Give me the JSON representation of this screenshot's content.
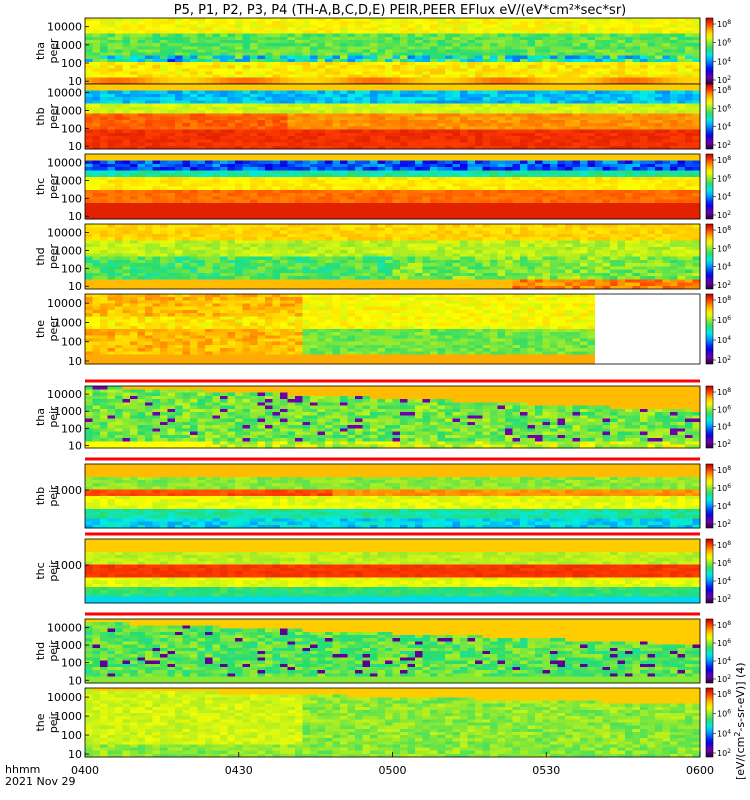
{
  "chart_data": {
    "type": "heatmap",
    "title": "P5, P1, P2, P3, P4 (TH-A,B,C,D,E) PEIR,PEER EFlux eV/(eV*cm²*sec*sr)",
    "x_ticks": [
      "0400",
      "0430",
      "0500",
      "0530",
      "0600"
    ],
    "x_range": [
      "0400",
      "0600"
    ],
    "x_label_top": "hhmm",
    "x_label_bottom": "2021 Nov 29",
    "colorbar": {
      "label": "[eV/(cm²-s-sr-eV)] (4)",
      "label_parts": [
        "[eV/(cm",
        "2",
        "-s-sr-eV)] (4)"
      ],
      "scale": "log",
      "tick_exponents": [
        2,
        4,
        6,
        8
      ],
      "tick_base": "10"
    },
    "y_scale": "log",
    "panels": [
      {
        "probe": "tha",
        "species": "peer",
        "y_ticks": [
          "10",
          "100",
          "1000",
          "10000"
        ],
        "y_range": [
          7,
          30000
        ],
        "colorbar_ticks": [
          2,
          4,
          6,
          8
        ],
        "pattern": "tha_peer",
        "flag_bar": false
      },
      {
        "probe": "thb",
        "species": "peer",
        "y_ticks": [
          "10",
          "100",
          "1000",
          "10000"
        ],
        "y_range": [
          7,
          30000
        ],
        "colorbar_ticks": [
          2,
          4,
          6,
          8
        ],
        "pattern": "thb_peer",
        "flag_bar": false
      },
      {
        "probe": "thc",
        "species": "peer",
        "y_ticks": [
          "10",
          "100",
          "1000",
          "10000"
        ],
        "y_range": [
          7,
          30000
        ],
        "colorbar_ticks": [
          2,
          4,
          6,
          8
        ],
        "pattern": "thc_peer",
        "flag_bar": false
      },
      {
        "probe": "thd",
        "species": "peer",
        "y_ticks": [
          "10",
          "100",
          "1000",
          "10000"
        ],
        "y_range": [
          7,
          30000
        ],
        "colorbar_ticks": [
          2,
          4,
          6,
          8
        ],
        "pattern": "thd_peer",
        "flag_bar": false
      },
      {
        "probe": "the",
        "species": "peer",
        "y_ticks": [
          "10",
          "100",
          "1000",
          "10000"
        ],
        "y_range": [
          7,
          30000
        ],
        "colorbar_ticks": [
          2,
          4,
          6,
          8
        ],
        "pattern": "the_peer",
        "flag_bar": false
      },
      {
        "probe": "tha",
        "species": "peir",
        "y_ticks": [
          "10",
          "100",
          "1000",
          "10000"
        ],
        "y_range": [
          7,
          30000
        ],
        "colorbar_ticks": [
          2,
          4,
          6,
          8
        ],
        "pattern": "tha_peir",
        "flag_bar": true
      },
      {
        "probe": "thb",
        "species": "peir",
        "y_ticks": [
          "1000"
        ],
        "y_range": [
          7,
          30000
        ],
        "colorbar_ticks": [
          2,
          4,
          6,
          8
        ],
        "pattern": "thb_peir",
        "flag_bar": true
      },
      {
        "probe": "thc",
        "species": "peir",
        "y_ticks": [
          "1000"
        ],
        "y_range": [
          7,
          30000
        ],
        "colorbar_ticks": [
          2,
          4,
          6,
          8
        ],
        "pattern": "thc_peir",
        "flag_bar": true
      },
      {
        "probe": "thd",
        "species": "peir",
        "y_ticks": [
          "10",
          "100",
          "1000",
          "10000"
        ],
        "y_range": [
          7,
          30000
        ],
        "colorbar_ticks": [
          2,
          4,
          6,
          8
        ],
        "pattern": "thd_peir",
        "flag_bar": true
      },
      {
        "probe": "the",
        "species": "peir",
        "y_ticks": [
          "10",
          "100",
          "1000",
          "10000"
        ],
        "y_range": [
          7,
          30000
        ],
        "colorbar_ticks": [
          2,
          4,
          6,
          8
        ],
        "pattern": "the_peir",
        "flag_bar": false
      }
    ]
  }
}
